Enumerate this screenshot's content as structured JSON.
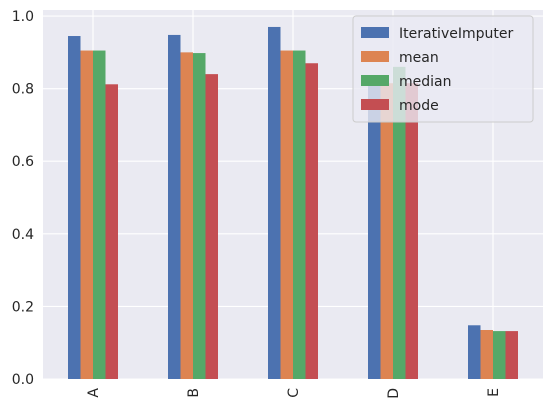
{
  "chart_data": {
    "type": "bar",
    "categories": [
      "A",
      "B",
      "C",
      "D",
      "E"
    ],
    "series": [
      {
        "name": "IterativeImputer",
        "color": "#4c72b0",
        "values": [
          0.945,
          0.948,
          0.97,
          0.83,
          0.148
        ]
      },
      {
        "name": "mean",
        "color": "#dd8452",
        "values": [
          0.905,
          0.9,
          0.905,
          0.815,
          0.135
        ]
      },
      {
        "name": "median",
        "color": "#55a868",
        "values": [
          0.905,
          0.898,
          0.905,
          0.86,
          0.132
        ]
      },
      {
        "name": "mode",
        "color": "#c44e52",
        "values": [
          0.812,
          0.84,
          0.87,
          0.815,
          0.132
        ]
      }
    ],
    "yticks": [
      "0.0",
      "0.2",
      "0.4",
      "0.6",
      "0.8",
      "1.0"
    ],
    "ylim": [
      0,
      1.0167
    ],
    "grid": true,
    "legend_position": "top-right",
    "background": "#eaeaf2"
  }
}
